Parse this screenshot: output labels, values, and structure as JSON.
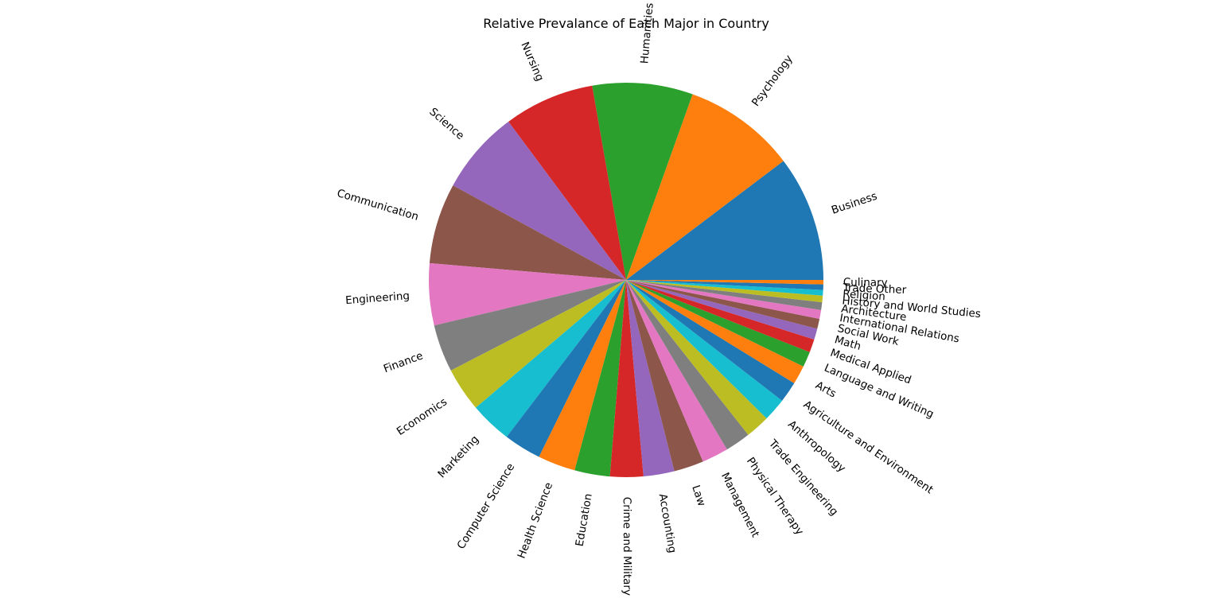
{
  "chart_data": {
    "type": "pie",
    "title": "Relative Prevalance of Each Major in Country",
    "start_angle": 0,
    "direction": "counterclockwise",
    "rotate_labels": true,
    "labels": [
      "Business",
      "Psychology",
      "Humanities",
      "Nursing",
      "Science",
      "Communication",
      "Engineering",
      "Finance",
      "Economics",
      "Marketing",
      "Computer Science",
      "Health Science",
      "Education",
      "Crime and Military",
      "Accounting",
      "Law",
      "Management",
      "Physical Therapy",
      "Trade Engineering",
      "Anthropology",
      "Agriculture and Environment",
      "Arts",
      "Language and Writing",
      "Medical Applied",
      "Math",
      "Social Work",
      "International Relations",
      "Architecture",
      "History and World Studies",
      "Religion",
      "Trade Other",
      "Culinary"
    ],
    "values": [
      11.4,
      10.2,
      9.1,
      8.2,
      7.6,
      7.3,
      5.6,
      4.3,
      4.0,
      3.8,
      3.4,
      3.4,
      3.2,
      3.0,
      2.8,
      2.7,
      2.4,
      2.3,
      2.2,
      2.1,
      1.9,
      1.7,
      1.4,
      1.2,
      1.0,
      0.9,
      0.8,
      0.7,
      0.6,
      0.5,
      0.5,
      0.4
    ],
    "colors": [
      "#1f77b4",
      "#ff7f0e",
      "#2ca02c",
      "#d62728",
      "#9467bd",
      "#8c564b",
      "#e377c2",
      "#7f7f7f",
      "#bcbd22",
      "#17becf"
    ]
  }
}
